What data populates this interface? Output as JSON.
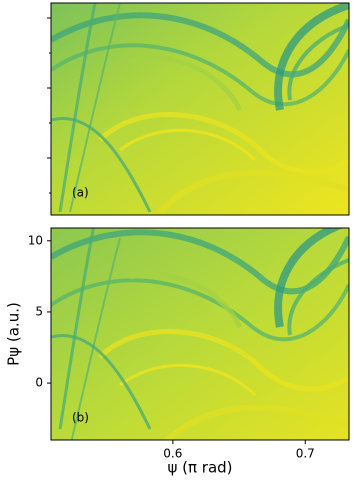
{
  "chart_data": [
    {
      "type": "heatmap",
      "label": "(a)",
      "xlim": [
        0.508,
        0.733
      ]
    },
    {
      "type": "heatmap",
      "label": "(b)",
      "xlabel": "ψ (π rad)",
      "ylabel": "Pψ (a.u.)",
      "xlim": [
        0.508,
        0.733
      ],
      "xticks": [
        0.6,
        0.7
      ],
      "ylim": [
        -4,
        10.9
      ],
      "yticks": [
        0,
        5,
        10
      ]
    }
  ]
}
